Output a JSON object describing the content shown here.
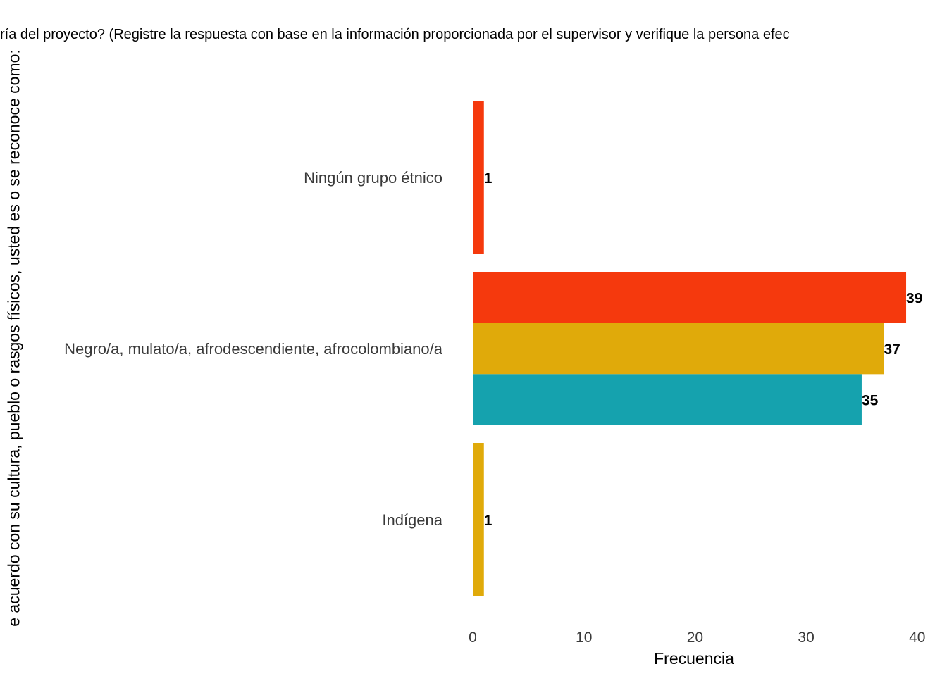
{
  "chart_data": {
    "type": "bar",
    "orientation": "horizontal",
    "title": "ría del proyecto? (Registre la respuesta con base en la información proporcionada por el supervisor y verifique la persona efec",
    "xlabel": "Frecuencia",
    "ylabel": "e acuerdo con su cultura, pueblo o rasgos físicos, usted es o se reconoce como:",
    "xlim": [
      0,
      40
    ],
    "xticks": [
      "0",
      "10",
      "20",
      "30",
      "40"
    ],
    "grid": false,
    "legend": "none",
    "categories": [
      "Ningún grupo étnico",
      "Negro/a, mulato/a, afrodescendiente, afrocolombiano/a",
      "Indígena"
    ],
    "groups": [
      {
        "category": "Ningún grupo étnico",
        "bars": [
          {
            "value": 1,
            "label": "1",
            "color": "#F5390D"
          }
        ]
      },
      {
        "category": "Negro/a, mulato/a, afrodescendiente, afrocolombiano/a",
        "bars": [
          {
            "value": 39,
            "label": "39",
            "color": "#F5390D"
          },
          {
            "value": 37,
            "label": "37",
            "color": "#E0AA0A"
          },
          {
            "value": 35,
            "label": "35",
            "color": "#15A2AE"
          }
        ]
      },
      {
        "category": "Indígena",
        "bars": [
          {
            "value": 1,
            "label": "1",
            "color": "#E0AA0A"
          }
        ]
      }
    ]
  }
}
